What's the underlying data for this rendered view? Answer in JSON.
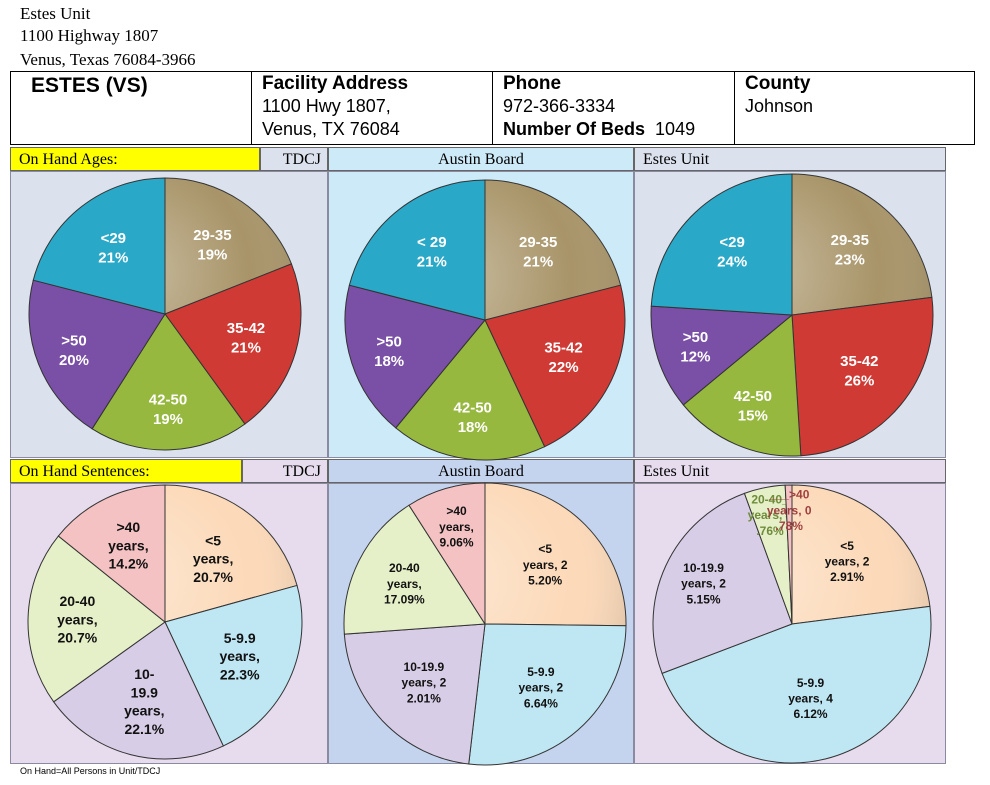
{
  "address": {
    "line1": "Estes Unit",
    "line2": "1100 Highway 1807",
    "line3": "Venus, Texas 76084-3966"
  },
  "facility": {
    "name": "ESTES (VS)",
    "address_label": "Facility Address",
    "address_line1": "1100 Hwy 1807,",
    "address_line2": "Venus, TX 76084",
    "phone_label": "Phone",
    "phone": "972-366-3334",
    "beds_label": "Number Of Beds",
    "beds": "1049",
    "county_label": "County",
    "county": "Johnson"
  },
  "sections": {
    "ages_title": "On Hand Ages:",
    "sentences_title": "On Hand Sentences:",
    "col_tdcj": "TDCJ",
    "col_austin": "Austin Board",
    "col_estes": "Estes Unit"
  },
  "footnote": "On Hand=All Persons in Unit/TDCJ",
  "colors": {
    "age": [
      "#a89468",
      "#d03a35",
      "#97b83f",
      "#7a4fa6",
      "#2aa8c8"
    ],
    "sent": [
      "#fcd9b8",
      "#bfe6f3",
      "#d8cde6",
      "#e5efc8",
      "#f4c2c2"
    ]
  },
  "chart_data": [
    {
      "type": "pie",
      "name": "ages-tdcj",
      "labels": [
        "29-35",
        "35-42",
        "42-50",
        ">50",
        "<29"
      ],
      "values": [
        19,
        21,
        19,
        20,
        21
      ],
      "data_labels": [
        [
          "29-35",
          "19%"
        ],
        [
          "35-42",
          "21%"
        ],
        [
          "42-50",
          "19%"
        ],
        [
          ">50",
          "20%"
        ],
        [
          "<29",
          "21%"
        ]
      ]
    },
    {
      "type": "pie",
      "name": "ages-austin",
      "labels": [
        "29-35",
        "35-42",
        "42-50",
        ">50",
        "< 29"
      ],
      "values": [
        21,
        22,
        18,
        18,
        21
      ],
      "data_labels": [
        [
          "29-35",
          "21%"
        ],
        [
          "35-42",
          "22%"
        ],
        [
          "42-50",
          "18%"
        ],
        [
          ">50",
          "18%"
        ],
        [
          "< 29",
          "21%"
        ]
      ]
    },
    {
      "type": "pie",
      "name": "ages-estes",
      "labels": [
        "29-35",
        "35-42",
        "42-50",
        ">50",
        "<29"
      ],
      "values": [
        23,
        26,
        15,
        12,
        24
      ],
      "data_labels": [
        [
          "29-35",
          "23%"
        ],
        [
          "35-42",
          "26%"
        ],
        [
          "42-50",
          "15%"
        ],
        [
          ">50",
          "12%"
        ],
        [
          "<29",
          "24%"
        ]
      ]
    },
    {
      "type": "pie",
      "name": "sent-tdcj",
      "labels": [
        "<5",
        "5-9.9",
        "10-19.9",
        "20-40",
        ">40"
      ],
      "values": [
        20.7,
        22.3,
        22.1,
        20.7,
        14.2
      ],
      "data_labels": [
        [
          "<5",
          "years,",
          "20.7%"
        ],
        [
          "5-9.9",
          "years,",
          "22.3%"
        ],
        [
          "10-",
          "19.9",
          "years,",
          "22.1%"
        ],
        [
          "20-40",
          "years,",
          "20.7%"
        ],
        [
          ">40",
          "years,",
          "14.2%"
        ]
      ]
    },
    {
      "type": "pie",
      "name": "sent-austin",
      "labels": [
        "<5",
        "5-9.9",
        "10-19.9",
        "20-40",
        ">40"
      ],
      "values": [
        25.2,
        26.64,
        22.01,
        17.09,
        9.06
      ],
      "data_labels": [
        [
          "<5",
          "years, 2",
          "5.20%"
        ],
        [
          "5-9.9",
          "years, 2",
          "6.64%"
        ],
        [
          "10-19.9",
          "years, 2",
          "2.01%"
        ],
        [
          "20-40",
          "years,",
          "17.09%"
        ],
        [
          ">40",
          "years,",
          "9.06%"
        ]
      ]
    },
    {
      "type": "pie",
      "name": "sent-estes",
      "labels": [
        "<5",
        "5-9.9",
        "10-19.9",
        "20-40",
        ">40"
      ],
      "values": [
        22.91,
        46.12,
        25.15,
        4.76,
        0.78
      ],
      "data_labels": [
        [
          "<5",
          "years, 2",
          "2.91%"
        ],
        [
          "5-9.9",
          "years, 4",
          "6.12%"
        ],
        [
          "10-19.9",
          "years, 2",
          "5.15%"
        ],
        [
          "20-40_",
          "years, 4",
          ".76%"
        ],
        [
          "___>40",
          "years, 0",
          ".78%"
        ]
      ]
    }
  ]
}
